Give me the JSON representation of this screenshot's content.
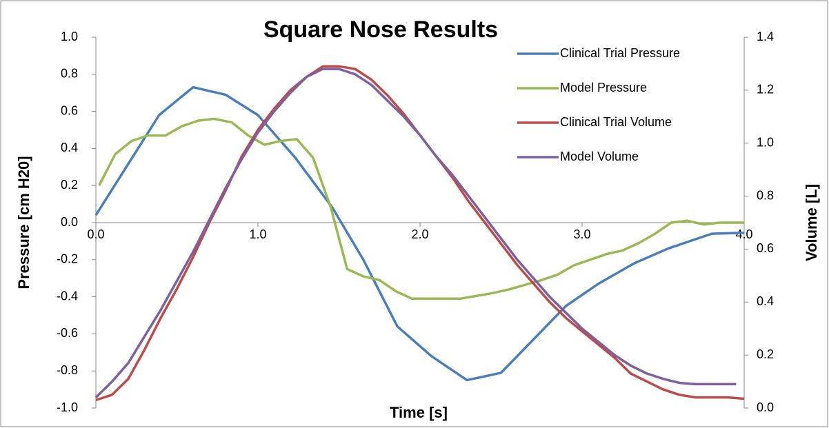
{
  "chart_data": {
    "type": "line",
    "title": "Square Nose Results",
    "x_label": "Time [s]",
    "y_label": "Pressure [cm H20]",
    "y2_label": "Volume [L]",
    "xlim": [
      0,
      4
    ],
    "xticks": [
      {
        "value": 0,
        "label": "0.0"
      },
      {
        "value": 1,
        "label": "1.0"
      },
      {
        "value": 2,
        "label": "2.0"
      },
      {
        "value": 3,
        "label": "3.0"
      },
      {
        "value": 4,
        "label": "4.0"
      }
    ],
    "ylim": [
      -1,
      1
    ],
    "yticks": [
      {
        "value": -1,
        "label": "-1.0"
      },
      -0.8,
      -0.6,
      -0.4,
      -0.2,
      {
        "value": 0,
        "label": "0.0"
      },
      0.2,
      0.4,
      0.6,
      0.8,
      {
        "value": 1,
        "label": "1.0"
      }
    ],
    "y2lim": [
      0,
      1.4
    ],
    "y2ticks": [
      {
        "value": 0,
        "label": "0.0"
      },
      0.2,
      0.4,
      0.6,
      0.8,
      {
        "value": 1,
        "label": "1.0"
      },
      1.2,
      1.4
    ],
    "legend": "upper right",
    "grid": false,
    "series": [
      {
        "name": "Clinical Trial Pressure",
        "color": "#4a7ebb",
        "x": [
          0,
          0.39,
          0.6,
          0.8,
          1.0,
          1.23,
          1.46,
          1.65,
          1.86,
          2.07,
          2.29,
          2.5,
          2.7,
          2.9,
          3.1,
          3.32,
          3.53,
          3.8,
          4.0
        ],
        "values": [
          0.04,
          0.58,
          0.73,
          0.69,
          0.58,
          0.35,
          0.08,
          -0.2,
          -0.56,
          -0.72,
          -0.85,
          -0.81,
          -0.63,
          -0.45,
          -0.33,
          -0.22,
          -0.14,
          -0.06,
          -0.055
        ]
      },
      {
        "name": "Model Pressure",
        "color": "#98b954",
        "x": [
          0.02,
          0.12,
          0.22,
          0.32,
          0.43,
          0.53,
          0.63,
          0.73,
          0.84,
          0.94,
          1.04,
          1.14,
          1.24,
          1.34,
          1.45,
          1.55,
          1.65,
          1.75,
          1.85,
          1.95,
          2.15,
          2.25,
          2.45,
          2.55,
          2.75,
          2.85,
          2.95,
          3.05,
          3.15,
          3.25,
          3.35,
          3.45,
          3.55,
          3.65,
          3.75,
          3.85,
          3.95,
          4.0
        ],
        "values": [
          0.2,
          0.37,
          0.44,
          0.47,
          0.47,
          0.52,
          0.55,
          0.56,
          0.54,
          0.47,
          0.42,
          0.44,
          0.45,
          0.35,
          0.08,
          -0.25,
          -0.29,
          -0.31,
          -0.37,
          -0.41,
          -0.41,
          -0.41,
          -0.38,
          -0.36,
          -0.31,
          -0.28,
          -0.23,
          -0.2,
          -0.17,
          -0.15,
          -0.11,
          -0.06,
          0.0,
          0.01,
          -0.01,
          0.0,
          0.0,
          0.0
        ]
      },
      {
        "name": "Clinical Trial Volume",
        "color": "#be4b48",
        "axis": "y2",
        "x": [
          0,
          0.1,
          0.2,
          0.3,
          0.4,
          0.5,
          0.6,
          0.7,
          0.8,
          0.9,
          1.0,
          1.1,
          1.2,
          1.3,
          1.4,
          1.5,
          1.6,
          1.7,
          1.8,
          1.9,
          2.0,
          2.1,
          2.2,
          2.3,
          2.4,
          2.5,
          2.6,
          2.7,
          2.8,
          2.9,
          3.0,
          3.1,
          3.2,
          3.3,
          3.4,
          3.5,
          3.6,
          3.7,
          3.8,
          3.9,
          4.0
        ],
        "values": [
          0.03,
          0.05,
          0.11,
          0.22,
          0.34,
          0.45,
          0.57,
          0.7,
          0.82,
          0.95,
          1.05,
          1.13,
          1.2,
          1.25,
          1.29,
          1.29,
          1.28,
          1.24,
          1.18,
          1.11,
          1.03,
          0.95,
          0.87,
          0.78,
          0.7,
          0.62,
          0.54,
          0.47,
          0.4,
          0.34,
          0.29,
          0.24,
          0.19,
          0.13,
          0.1,
          0.07,
          0.05,
          0.04,
          0.04,
          0.04,
          0.035
        ]
      },
      {
        "name": "Model Volume",
        "color": "#7d60a0",
        "axis": "y2",
        "x": [
          0,
          0.1,
          0.2,
          0.3,
          0.4,
          0.5,
          0.6,
          0.7,
          0.8,
          0.9,
          1.0,
          1.1,
          1.2,
          1.3,
          1.4,
          1.5,
          1.6,
          1.7,
          1.8,
          1.9,
          2.0,
          2.1,
          2.2,
          2.3,
          2.4,
          2.5,
          2.6,
          2.7,
          2.8,
          2.9,
          3.0,
          3.1,
          3.2,
          3.3,
          3.4,
          3.5,
          3.6,
          3.7,
          3.8,
          3.9,
          3.95
        ],
        "values": [
          0.04,
          0.1,
          0.17,
          0.27,
          0.37,
          0.48,
          0.59,
          0.71,
          0.83,
          0.94,
          1.04,
          1.12,
          1.19,
          1.25,
          1.28,
          1.28,
          1.26,
          1.22,
          1.16,
          1.1,
          1.03,
          0.95,
          0.88,
          0.8,
          0.72,
          0.64,
          0.56,
          0.49,
          0.42,
          0.36,
          0.3,
          0.25,
          0.2,
          0.16,
          0.13,
          0.11,
          0.095,
          0.09,
          0.09,
          0.09,
          0.09
        ]
      }
    ]
  }
}
